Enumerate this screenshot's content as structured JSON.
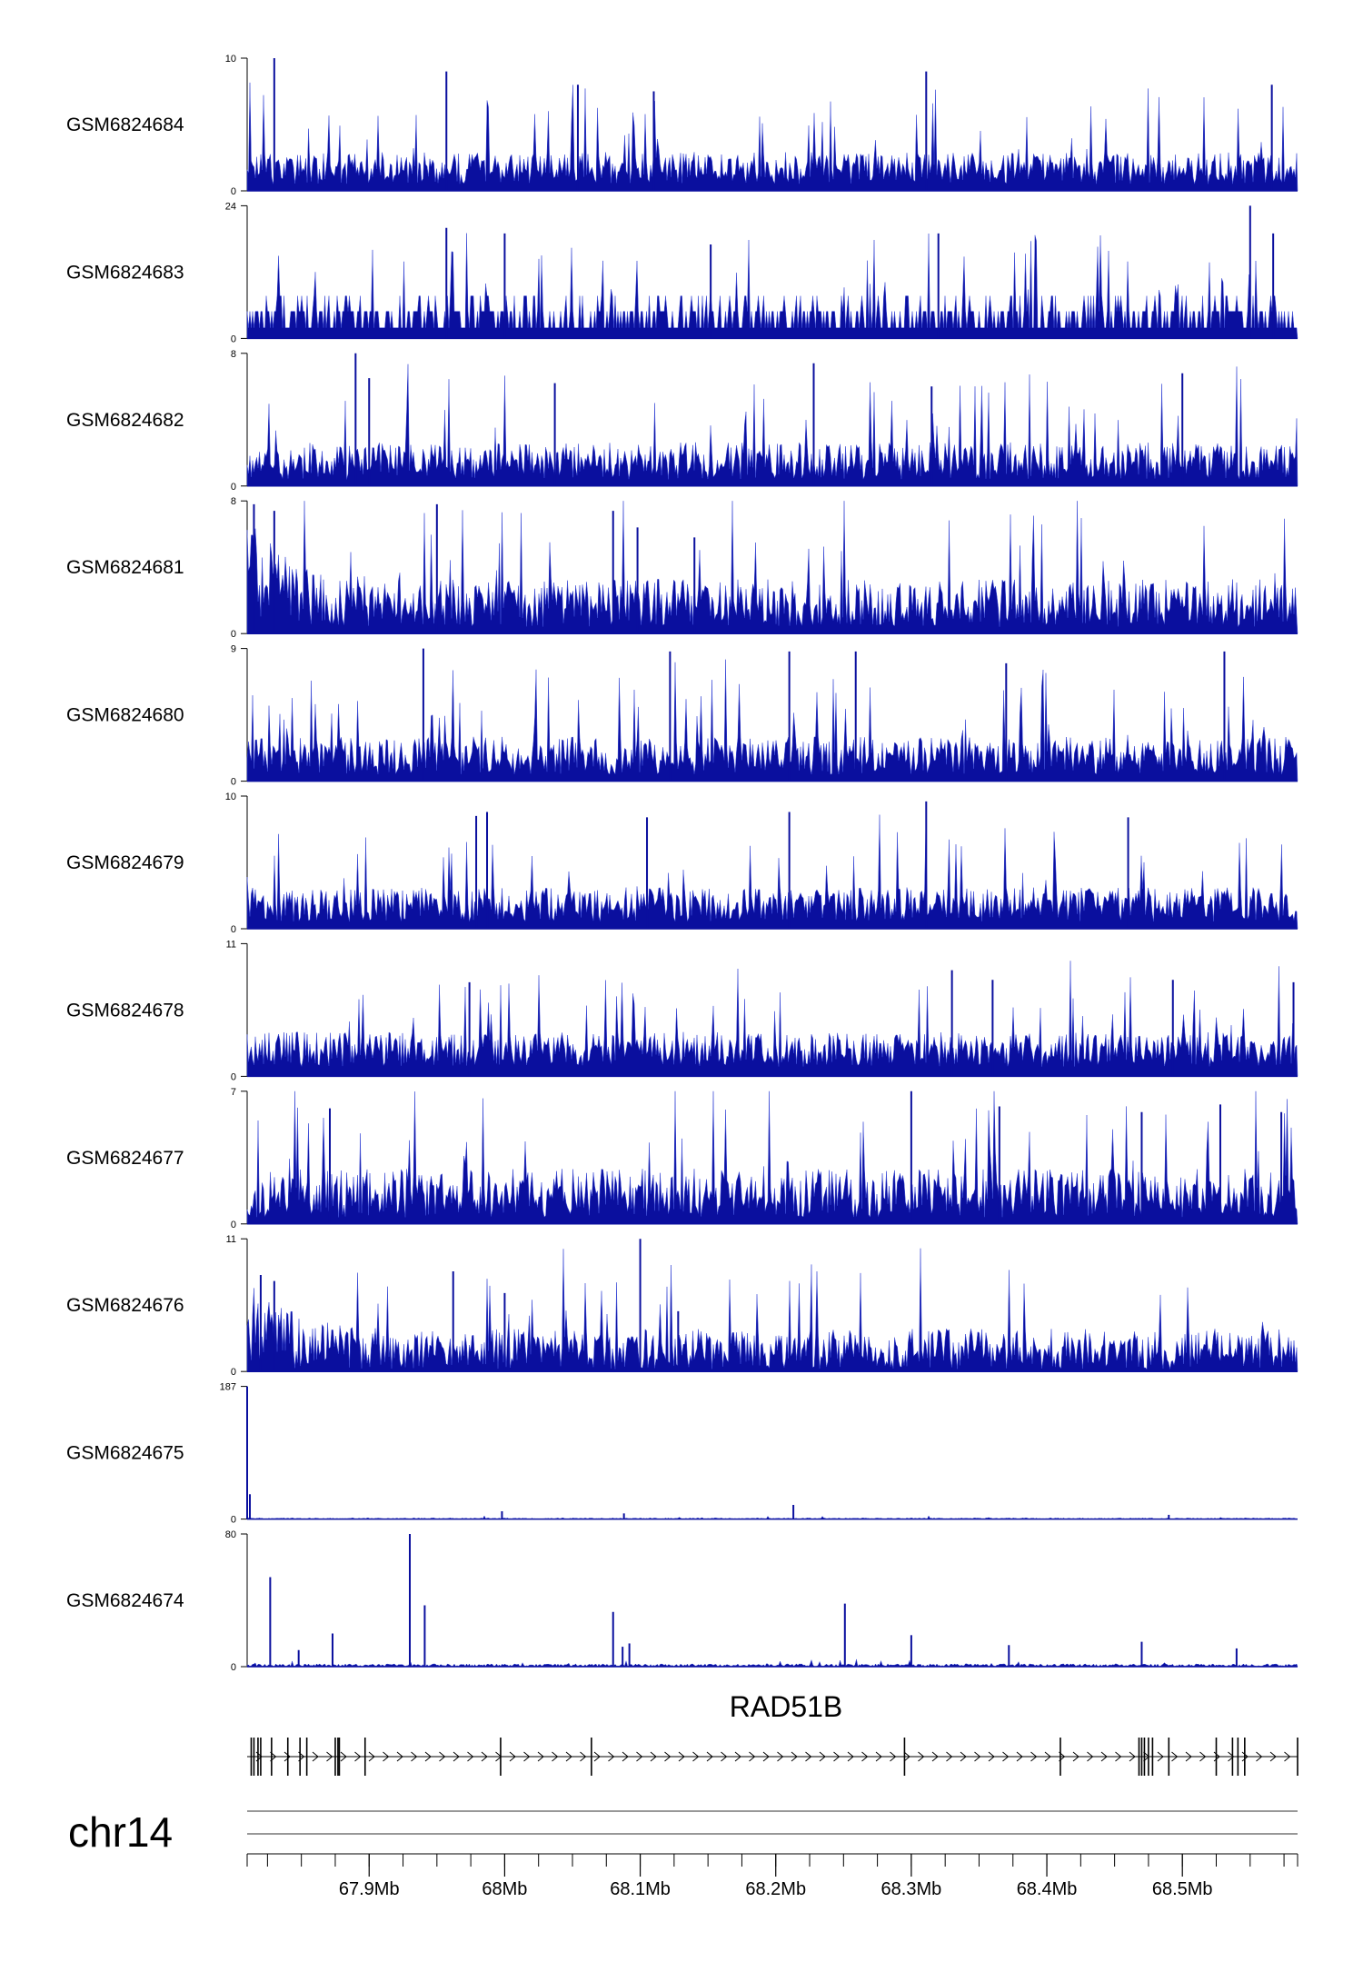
{
  "chart_data": {
    "type": "area",
    "chromosome": "chr14",
    "x_range_mb": [
      67.81,
      68.585
    ],
    "x_ticks": [
      {
        "value": 67.9,
        "label": "67.9Mb"
      },
      {
        "value": 68.0,
        "label": "68Mb"
      },
      {
        "value": 68.1,
        "label": "68.1Mb"
      },
      {
        "value": 68.2,
        "label": "68.2Mb"
      },
      {
        "value": 68.3,
        "label": "68.3Mb"
      },
      {
        "value": 68.4,
        "label": "68.4Mb"
      },
      {
        "value": 68.5,
        "label": "68.5Mb"
      }
    ],
    "minor_tick_step_mb": 0.025,
    "tracks": [
      {
        "name": "GSM6824684",
        "ymin": 0,
        "ymax": 10,
        "base": 1.6,
        "spread": 1.5,
        "spike": 0.06,
        "pattern": "noisy",
        "peaks": [
          {
            "x": 67.83,
            "y": 10
          },
          {
            "x": 67.957,
            "y": 9
          },
          {
            "x": 68.054,
            "y": 8
          },
          {
            "x": 68.11,
            "y": 7.5
          },
          {
            "x": 68.311,
            "y": 9
          },
          {
            "x": 68.566,
            "y": 8
          }
        ]
      },
      {
        "name": "GSM6824683",
        "ymin": 0,
        "ymax": 24,
        "base": 3.5,
        "spread": 2.5,
        "spike": 0.05,
        "pattern": "stepped",
        "peaks": [
          {
            "x": 67.957,
            "y": 20
          },
          {
            "x": 68.0,
            "y": 19
          },
          {
            "x": 68.152,
            "y": 17
          },
          {
            "x": 68.32,
            "y": 19
          },
          {
            "x": 68.55,
            "y": 24
          },
          {
            "x": 68.567,
            "y": 19
          }
        ]
      },
      {
        "name": "GSM6824682",
        "ymin": 0,
        "ymax": 8,
        "base": 1.4,
        "spread": 1.4,
        "spike": 0.06,
        "pattern": "noisy",
        "peaks": [
          {
            "x": 67.89,
            "y": 8
          },
          {
            "x": 67.9,
            "y": 6.5
          },
          {
            "x": 68.037,
            "y": 6.2
          },
          {
            "x": 68.228,
            "y": 7.4
          },
          {
            "x": 68.315,
            "y": 6
          },
          {
            "x": 68.5,
            "y": 6.8
          }
        ]
      },
      {
        "name": "GSM6824681",
        "ymin": 0,
        "ymax": 8,
        "base": 1.7,
        "spread": 1.8,
        "spike": 0.05,
        "pattern": "decay",
        "peaks": [
          {
            "x": 67.815,
            "y": 7.8
          },
          {
            "x": 67.83,
            "y": 7.4
          },
          {
            "x": 67.95,
            "y": 7.8
          },
          {
            "x": 68.08,
            "y": 7.4
          },
          {
            "x": 68.098,
            "y": 6.4
          },
          {
            "x": 68.14,
            "y": 5.8
          }
        ]
      },
      {
        "name": "GSM6824680",
        "ymin": 0,
        "ymax": 9,
        "base": 1.6,
        "spread": 1.6,
        "spike": 0.06,
        "pattern": "noisy",
        "peaks": [
          {
            "x": 67.94,
            "y": 9
          },
          {
            "x": 68.122,
            "y": 8.8
          },
          {
            "x": 68.21,
            "y": 8.8
          },
          {
            "x": 68.259,
            "y": 8.8
          },
          {
            "x": 68.37,
            "y": 8
          },
          {
            "x": 68.531,
            "y": 8.8
          }
        ]
      },
      {
        "name": "GSM6824679",
        "ymin": 0,
        "ymax": 10,
        "base": 1.7,
        "spread": 1.6,
        "spike": 0.06,
        "pattern": "noisy",
        "peaks": [
          {
            "x": 67.979,
            "y": 8.5
          },
          {
            "x": 67.987,
            "y": 8.8
          },
          {
            "x": 68.105,
            "y": 8.4
          },
          {
            "x": 68.21,
            "y": 8.8
          },
          {
            "x": 68.311,
            "y": 9.6
          },
          {
            "x": 68.46,
            "y": 8.4
          }
        ]
      },
      {
        "name": "GSM6824678",
        "ymin": 0,
        "ymax": 11,
        "base": 2.1,
        "spread": 1.8,
        "spike": 0.06,
        "pattern": "noisy",
        "peaks": [
          {
            "x": 67.974,
            "y": 7.8
          },
          {
            "x": 68.33,
            "y": 8.8
          },
          {
            "x": 68.36,
            "y": 8
          },
          {
            "x": 68.493,
            "y": 8
          },
          {
            "x": 68.582,
            "y": 7.8
          }
        ]
      },
      {
        "name": "GSM6824677",
        "ymin": 0,
        "ymax": 7,
        "base": 1.5,
        "spread": 1.6,
        "spike": 0.06,
        "pattern": "noisy",
        "peaks": [
          {
            "x": 67.871,
            "y": 6.1
          },
          {
            "x": 68.3,
            "y": 7
          },
          {
            "x": 68.365,
            "y": 6.2
          },
          {
            "x": 68.47,
            "y": 5.9
          },
          {
            "x": 68.528,
            "y": 6.3
          },
          {
            "x": 68.573,
            "y": 5.9
          }
        ]
      },
      {
        "name": "GSM6824676",
        "ymin": 0,
        "ymax": 11,
        "base": 1.7,
        "spread": 2.1,
        "spike": 0.05,
        "pattern": "decay",
        "peaks": [
          {
            "x": 67.82,
            "y": 8
          },
          {
            "x": 67.83,
            "y": 7.5
          },
          {
            "x": 67.962,
            "y": 8.3
          },
          {
            "x": 68.0,
            "y": 6.5
          },
          {
            "x": 68.1,
            "y": 11
          },
          {
            "x": 68.128,
            "y": 5
          }
        ]
      },
      {
        "name": "GSM6824675",
        "ymin": 0,
        "ymax": 187,
        "base": 0.8,
        "spread": 1.6,
        "spike": 0.02,
        "pattern": "flat",
        "peaks": [
          {
            "x": 67.81,
            "y": 187
          },
          {
            "x": 67.812,
            "y": 35
          },
          {
            "x": 67.998,
            "y": 11
          },
          {
            "x": 68.088,
            "y": 8
          },
          {
            "x": 68.213,
            "y": 20
          },
          {
            "x": 68.49,
            "y": 6
          }
        ]
      },
      {
        "name": "GSM6824674",
        "ymin": 0,
        "ymax": 80,
        "base": 0.9,
        "spread": 1.6,
        "spike": 0.03,
        "pattern": "flat",
        "peaks": [
          {
            "x": 67.827,
            "y": 54
          },
          {
            "x": 67.848,
            "y": 10
          },
          {
            "x": 67.873,
            "y": 20
          },
          {
            "x": 67.93,
            "y": 80
          },
          {
            "x": 67.941,
            "y": 37
          },
          {
            "x": 68.08,
            "y": 33
          },
          {
            "x": 68.087,
            "y": 12
          },
          {
            "x": 68.092,
            "y": 14
          },
          {
            "x": 68.251,
            "y": 38
          },
          {
            "x": 68.3,
            "y": 19
          },
          {
            "x": 68.372,
            "y": 13
          },
          {
            "x": 68.47,
            "y": 15
          },
          {
            "x": 68.54,
            "y": 11
          }
        ]
      }
    ],
    "genes": [
      {
        "name": "RAD51B",
        "start_mb": 67.81,
        "end_mb": 68.585,
        "strand": "+",
        "exons_mb": [
          67.813,
          67.815,
          67.818,
          67.82,
          67.828,
          67.84,
          67.849,
          67.854,
          67.875,
          67.877,
          67.878,
          67.897,
          67.997,
          68.064,
          68.295,
          68.41,
          68.468,
          68.47,
          68.472,
          68.475,
          68.478,
          68.49,
          68.525,
          68.537,
          68.541,
          68.546,
          68.585
        ]
      }
    ]
  },
  "colors": {
    "signal": "#0a0f9e",
    "signal_light": "#3a4ad8",
    "axis": "#000000",
    "gene": "#000000",
    "ideogram": "#777777"
  }
}
